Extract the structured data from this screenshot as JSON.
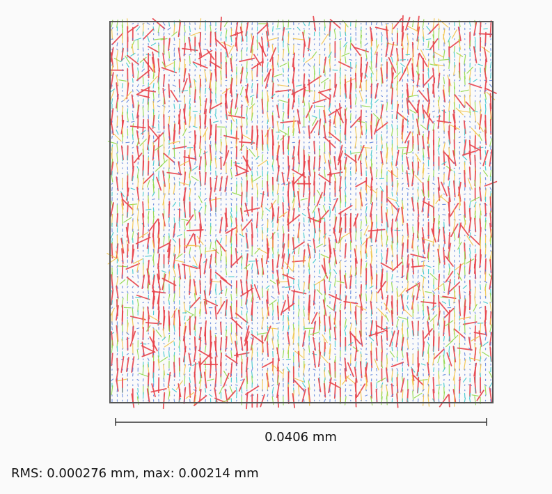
{
  "chart_data": {
    "type": "quiver",
    "description_colors": {
      "small": "#4a74d9",
      "low": "#3fc7cf",
      "mid": "#8fd84a",
      "high": "#f2c44a",
      "max": "#e8424a"
    },
    "grid": {
      "cols": 74,
      "rows": 74
    },
    "field": {
      "max_magnitude_mm": 0.00214,
      "rms_mm": 0.000276,
      "dominant_direction": "vertical"
    },
    "frame_color": "#555555"
  },
  "scale_bar": {
    "label": "0.0406 mm"
  },
  "stats": {
    "text": "RMS: 0.000276 mm, max: 0.00214 mm"
  }
}
